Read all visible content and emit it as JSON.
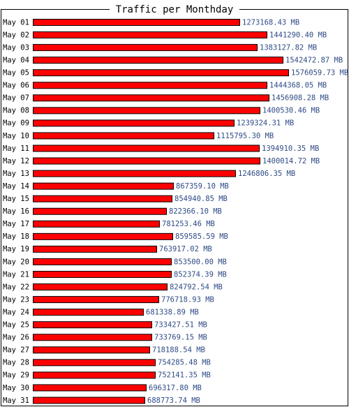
{
  "chart_data": {
    "type": "bar",
    "orientation": "horizontal",
    "title": "Traffic per Monthday",
    "unit": "MB",
    "colors": {
      "bar": "#ff0000",
      "bar_border": "#000000",
      "value_label": "#2e4a86",
      "frame": "#000000"
    },
    "categories": [
      "May 01",
      "May 02",
      "May 03",
      "May 04",
      "May 05",
      "May 06",
      "May 07",
      "May 08",
      "May 09",
      "May 10",
      "May 11",
      "May 12",
      "May 13",
      "May 14",
      "May 15",
      "May 16",
      "May 17",
      "May 18",
      "May 19",
      "May 20",
      "May 21",
      "May 22",
      "May 23",
      "May 24",
      "May 25",
      "May 26",
      "May 27",
      "May 28",
      "May 29",
      "May 30",
      "May 31"
    ],
    "values": [
      1273168.43,
      1441290.4,
      1383127.82,
      1542472.87,
      1576059.73,
      1444368.05,
      1456908.28,
      1400530.46,
      1239324.31,
      1115795.3,
      1394910.35,
      1400014.72,
      1246806.35,
      867359.1,
      854940.85,
      822366.1,
      781253.46,
      859585.59,
      763917.02,
      853500.0,
      852374.39,
      824792.54,
      776718.93,
      681338.89,
      733427.51,
      733769.15,
      718188.54,
      754285.48,
      752141.35,
      696317.8,
      688773.74
    ],
    "value_labels": [
      "1273168.43 MB",
      "1441290.40 MB",
      "1383127.82 MB",
      "1542472.87 MB",
      "1576059.73 MB",
      "1444368.05 MB",
      "1456908.28 MB",
      "1400530.46 MB",
      "1239324.31 MB",
      "1115795.30 MB",
      "1394910.35 MB",
      "1400014.72 MB",
      "1246806.35 MB",
      "867359.10 MB",
      "854940.85 MB",
      "822366.10 MB",
      "781253.46 MB",
      "859585.59 MB",
      "763917.02 MB",
      "853500.00 MB",
      "852374.39 MB",
      "824792.54 MB",
      "776718.93 MB",
      "681338.89 MB",
      "733427.51 MB",
      "733769.15 MB",
      "718188.54 MB",
      "754285.48 MB",
      "752141.35 MB",
      "696317.80 MB",
      "688773.74 MB"
    ],
    "xlim": [
      0,
      1576059.73
    ]
  }
}
